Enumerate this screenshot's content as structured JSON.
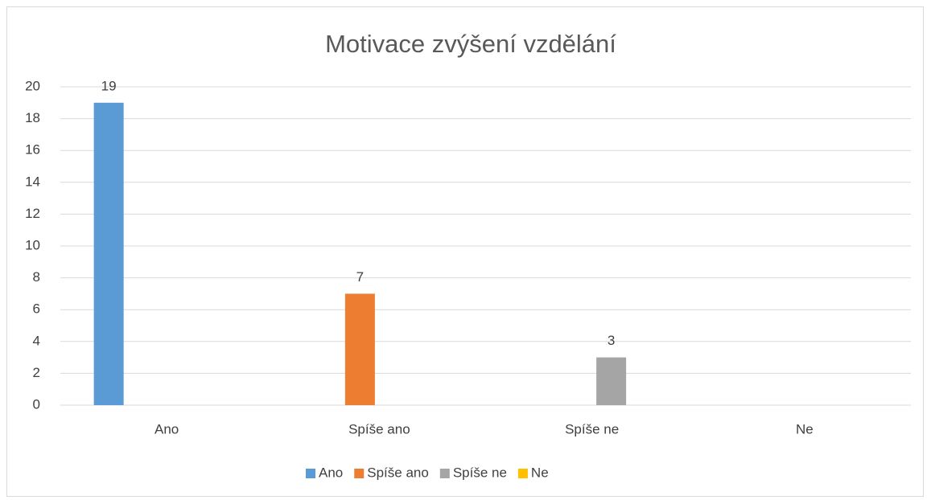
{
  "chart_data": {
    "type": "bar",
    "title": "Motivace zvýšení vzdělání",
    "categories": [
      "Ano",
      "Spíše ano",
      "Spíše ne",
      "Ne"
    ],
    "series": [
      {
        "name": "Ano",
        "color": "#5b9bd5",
        "values": [
          19,
          null,
          null,
          null
        ]
      },
      {
        "name": "Spíše ano",
        "color": "#ed7d31",
        "values": [
          null,
          7,
          null,
          null
        ]
      },
      {
        "name": "Spíše ne",
        "color": "#a5a5a5",
        "values": [
          null,
          null,
          3,
          null
        ]
      },
      {
        "name": "Ne",
        "color": "#ffc000",
        "values": [
          null,
          null,
          null,
          null
        ]
      }
    ],
    "ylim": [
      0,
      20
    ],
    "yticks": [
      0,
      2,
      4,
      6,
      8,
      10,
      12,
      14,
      16,
      18,
      20
    ],
    "grid": true,
    "legend": "bottom"
  }
}
